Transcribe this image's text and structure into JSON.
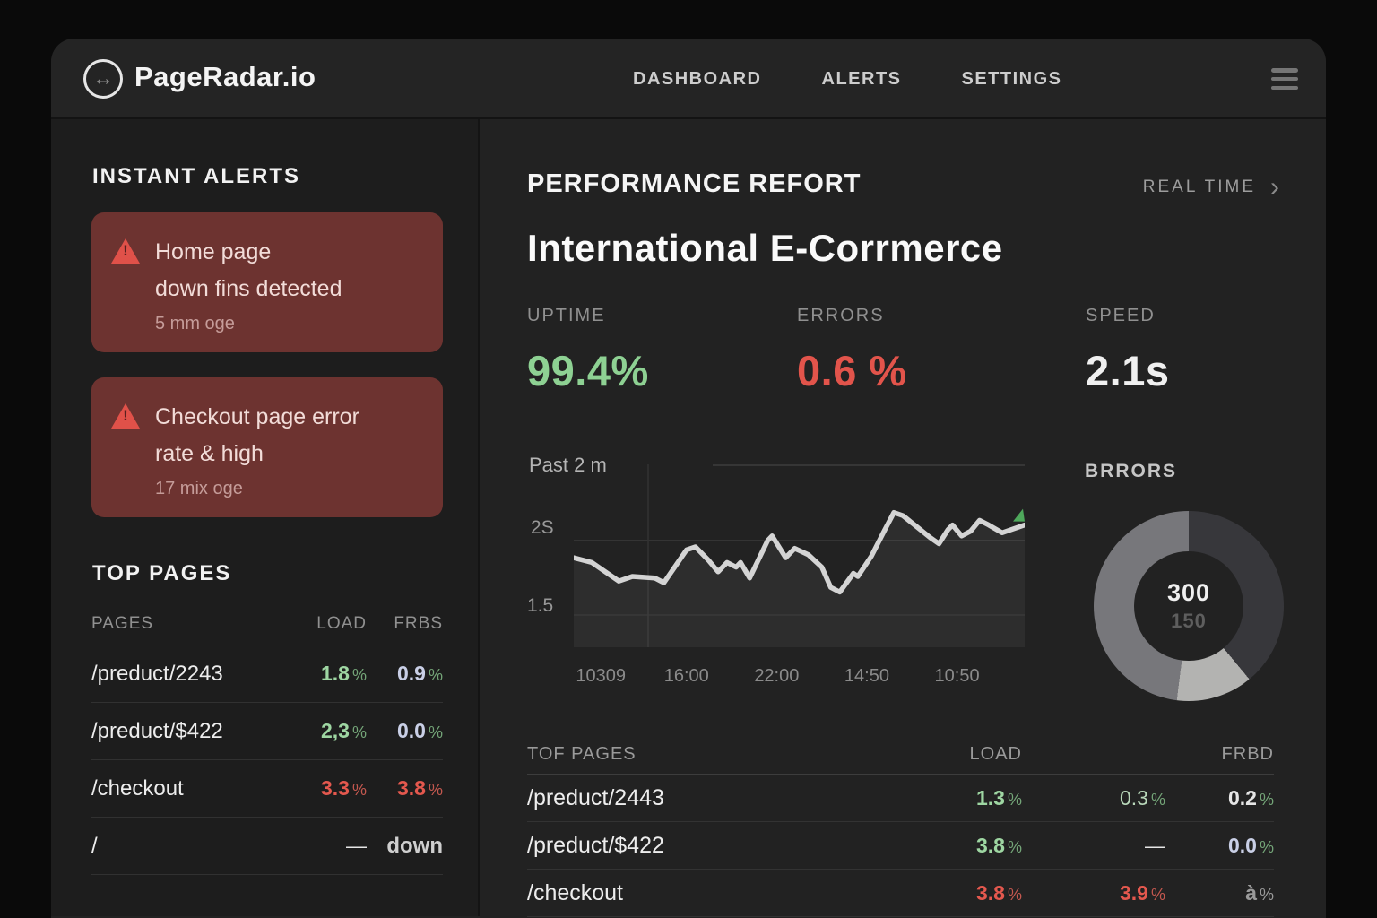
{
  "header": {
    "brand": "PageRadar.io",
    "nav": [
      "DASHBOARD",
      "ALERTS",
      "SETTINGS"
    ]
  },
  "icons": {
    "logo_arrows": "↔",
    "chevron_right": "›",
    "dash": "—"
  },
  "sidebar": {
    "alerts_heading": "INSTANT ALERTS",
    "alerts": [
      {
        "line1": "Home page",
        "line2": "down fins detected",
        "time": "5 mm oge"
      },
      {
        "line1": "Checkout page error",
        "line2": "rate & high",
        "time": "17 mix oge"
      }
    ],
    "top_pages_heading": "TOP PAGES",
    "table": {
      "columns": [
        "PAGES",
        "LOAD",
        "FRBS"
      ],
      "rows": [
        {
          "page": "/preduct/2243",
          "load": "1.8",
          "load_unit": "%",
          "frbs": "0.9",
          "frbs_unit": "%"
        },
        {
          "page": "/preduct/$422",
          "load": "2,3",
          "load_unit": "%",
          "frbs": "0.0",
          "frbs_unit": "%"
        },
        {
          "page": "/checkout",
          "load": "3.3",
          "load_unit": "%",
          "frbs": "3.8",
          "frbs_unit": "%"
        },
        {
          "page": "/",
          "load": "—",
          "load_unit": "",
          "frbs": "down",
          "frbs_unit": ""
        }
      ]
    }
  },
  "main": {
    "report_label": "PERFORMANCE REFORT",
    "realtime_label": "REAL TIME",
    "title": "International E-Corrmerce",
    "kpis": [
      {
        "label": "UPTIME",
        "value": "99.4%"
      },
      {
        "label": "ERRORS",
        "value": "0.6 %"
      },
      {
        "label": "SPEED",
        "value": "2.1s"
      }
    ],
    "table": {
      "columns": [
        "TOF PAGES",
        "LOAD",
        "",
        "FRBD"
      ],
      "rows": [
        {
          "page": "/preduct/2443",
          "load": "1.3",
          "load_unit": "%",
          "mid": "0.3",
          "mid_unit": "%",
          "frbd": "0.2",
          "frbd_unit": "%"
        },
        {
          "page": "/preduct/$422",
          "load": "3.8",
          "load_unit": "%",
          "mid": "—",
          "mid_unit": "",
          "frbd": "0.0",
          "frbd_unit": "%"
        },
        {
          "page": "/checkout",
          "load": "3.8",
          "load_unit": "%",
          "mid": "3.9",
          "mid_unit": "%",
          "frbd": "à",
          "frbd_unit": "%"
        }
      ]
    }
  },
  "colors": {
    "uptime_green": "#8ed193",
    "error_red": "#e2544b",
    "table_green": "#9ed6a2",
    "table_lavender": "#c9cfe6",
    "table_red": "#e4584e",
    "alert_bg": "#6d3330",
    "line": "#d4d4d4",
    "line_end_marker": "#4ea85b"
  },
  "chart_data": [
    {
      "type": "line",
      "title": "Past 2 m",
      "y_ticks": [
        "2S",
        "1.5"
      ],
      "y_tick_values": [
        2.0,
        1.5
      ],
      "ylim": [
        1.31,
        2.49
      ],
      "x_ticks": [
        {
          "label": "10309",
          "pos": 6
        },
        {
          "label": "16:00",
          "pos": 25
        },
        {
          "label": "22:00",
          "pos": 45
        },
        {
          "label": "14:50",
          "pos": 65
        },
        {
          "label": "10:50",
          "pos": 85
        }
      ],
      "x_pct": [
        0,
        4,
        10,
        13,
        18,
        20,
        25,
        27,
        30,
        32,
        34,
        36,
        37,
        39,
        43,
        44,
        47,
        49,
        52,
        55,
        57,
        59,
        62,
        63,
        66,
        69,
        71,
        73,
        76,
        79,
        81,
        83,
        84,
        86,
        88,
        90,
        92,
        95,
        97,
        100
      ],
      "seconds": [
        1.89,
        1.86,
        1.74,
        1.77,
        1.76,
        1.73,
        1.94,
        1.96,
        1.87,
        1.8,
        1.86,
        1.83,
        1.86,
        1.76,
        2.0,
        2.03,
        1.89,
        1.95,
        1.91,
        1.83,
        1.7,
        1.67,
        1.79,
        1.77,
        1.9,
        2.07,
        2.18,
        2.16,
        2.09,
        2.02,
        1.98,
        2.07,
        2.1,
        2.03,
        2.06,
        2.13,
        2.1,
        2.05,
        2.07,
        2.1
      ],
      "grid": true
    },
    {
      "type": "pie",
      "title": "BRRORS",
      "center_value": "300",
      "center_sub": "150",
      "segments": [
        {
          "name": "segment-dark",
          "pct": 39,
          "color": "#37373b"
        },
        {
          "name": "segment-light",
          "pct": 13,
          "color": "#b3b3b1"
        },
        {
          "name": "segment-medium",
          "pct": 48,
          "color": "#77777b"
        }
      ],
      "legend": "none"
    }
  ]
}
